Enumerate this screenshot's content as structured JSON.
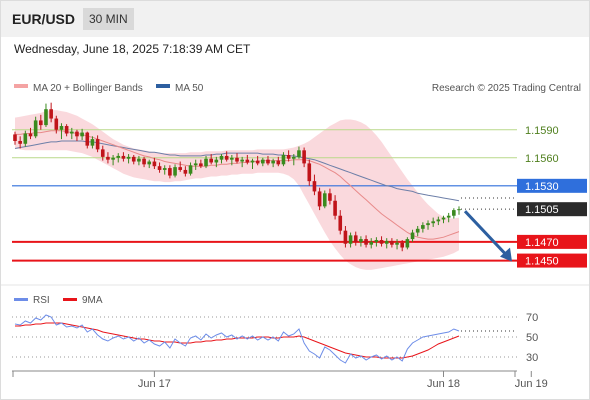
{
  "header": {
    "pair": "EUR/USD",
    "timeframe": "30 MIN",
    "datetime": "Wednesday, June 18, 2025 7:18:39 AM CET"
  },
  "legend": {
    "ma20": "MA 20 + Bollinger Bands",
    "ma50": "MA 50",
    "credit": "Research © 2025 Trading Central",
    "rsi": "RSI",
    "rsi_ma": "9MA"
  },
  "colors": {
    "up": "#3a8a1e",
    "down": "#c0141a",
    "bollinger_fill": "#f9d0d4",
    "ma20": "#e88a8a",
    "ma50": "#6d7fa8",
    "resistance": "#2f6fdc",
    "support": "#e8141a",
    "green_line": "#b9d98a",
    "arrow": "#2d5fa0",
    "rsi_line": "#6d8de8",
    "rsi_ma": "#e8141a"
  },
  "chart_data": [
    {
      "type": "candlestick",
      "title": "EUR/USD 30 MIN",
      "ylim": [
        1.1426,
        1.1624
      ],
      "x_ticks": [
        {
          "label": "Jun 17",
          "i": 27
        },
        {
          "label": "Jun 18",
          "i": 83
        },
        {
          "label": "Jun 19",
          "i": 100
        }
      ],
      "levels": [
        {
          "value": 1.159,
          "label": "1.1590",
          "kind": "green"
        },
        {
          "value": 1.156,
          "label": "1.1560",
          "kind": "green"
        },
        {
          "value": 1.153,
          "label": "1.1530",
          "kind": "resistance"
        },
        {
          "value": 1.1505,
          "label": "1.1505",
          "kind": "current"
        },
        {
          "value": 1.147,
          "label": "1.1470",
          "kind": "support"
        },
        {
          "value": 1.145,
          "label": "1.1450",
          "kind": "support"
        }
      ],
      "forecast_arrow": {
        "from": 1.1505,
        "to": 1.145
      },
      "ohlc": [
        [
          1.1585,
          1.1588,
          1.1574,
          1.1578
        ],
        [
          1.1578,
          1.1583,
          1.157,
          1.1575
        ],
        [
          1.1575,
          1.1589,
          1.1572,
          1.1586
        ],
        [
          1.1586,
          1.1592,
          1.158,
          1.1583
        ],
        [
          1.1583,
          1.1604,
          1.1581,
          1.16
        ],
        [
          1.16,
          1.1606,
          1.159,
          1.1595
        ],
        [
          1.1595,
          1.1618,
          1.1593,
          1.1612
        ],
        [
          1.1612,
          1.1619,
          1.1598,
          1.1602
        ],
        [
          1.1602,
          1.1605,
          1.1586,
          1.159
        ],
        [
          1.159,
          1.1597,
          1.158,
          1.1594
        ],
        [
          1.1594,
          1.1596,
          1.1583,
          1.1586
        ],
        [
          1.1586,
          1.1592,
          1.158,
          1.1588
        ],
        [
          1.1588,
          1.159,
          1.1578,
          1.1583
        ],
        [
          1.1583,
          1.1591,
          1.1579,
          1.1587
        ],
        [
          1.1587,
          1.1588,
          1.157,
          1.1573
        ],
        [
          1.1573,
          1.1583,
          1.157,
          1.158
        ],
        [
          1.158,
          1.1584,
          1.1566,
          1.1569
        ],
        [
          1.1569,
          1.1573,
          1.1557,
          1.1561
        ],
        [
          1.1561,
          1.1566,
          1.1554,
          1.1558
        ],
        [
          1.1558,
          1.1563,
          1.1552,
          1.156
        ],
        [
          1.156,
          1.1565,
          1.1555,
          1.1562
        ],
        [
          1.1562,
          1.1566,
          1.1556,
          1.1559
        ],
        [
          1.1559,
          1.1564,
          1.1554,
          1.1561
        ],
        [
          1.1561,
          1.1563,
          1.1553,
          1.1556
        ],
        [
          1.1556,
          1.1562,
          1.1552,
          1.1559
        ],
        [
          1.1559,
          1.1561,
          1.155,
          1.1553
        ],
        [
          1.1553,
          1.1558,
          1.1549,
          1.1556
        ],
        [
          1.1556,
          1.156,
          1.1548,
          1.1551
        ],
        [
          1.1551,
          1.1555,
          1.1544,
          1.1547
        ],
        [
          1.1547,
          1.1552,
          1.1542,
          1.1549
        ],
        [
          1.1549,
          1.1552,
          1.1538,
          1.1541
        ],
        [
          1.1541,
          1.1553,
          1.1539,
          1.155
        ],
        [
          1.155,
          1.1556,
          1.1545,
          1.1547
        ],
        [
          1.1547,
          1.1551,
          1.154,
          1.1543
        ],
        [
          1.1543,
          1.1555,
          1.1541,
          1.1552
        ],
        [
          1.1552,
          1.1558,
          1.1547,
          1.1554
        ],
        [
          1.1554,
          1.1558,
          1.1549,
          1.1551
        ],
        [
          1.1551,
          1.1562,
          1.1549,
          1.1559
        ],
        [
          1.1559,
          1.1564,
          1.1553,
          1.1555
        ],
        [
          1.1555,
          1.1561,
          1.155,
          1.1558
        ],
        [
          1.1558,
          1.1564,
          1.1554,
          1.1562
        ],
        [
          1.1562,
          1.1567,
          1.1556,
          1.1558
        ],
        [
          1.1558,
          1.1563,
          1.1552,
          1.156
        ],
        [
          1.156,
          1.1565,
          1.1554,
          1.1556
        ],
        [
          1.1556,
          1.1561,
          1.155,
          1.1558
        ],
        [
          1.1558,
          1.1563,
          1.1553,
          1.1555
        ],
        [
          1.1555,
          1.1559,
          1.1548,
          1.1557
        ],
        [
          1.1557,
          1.1562,
          1.1552,
          1.1554
        ],
        [
          1.1554,
          1.156,
          1.1551,
          1.1558
        ],
        [
          1.1558,
          1.1562,
          1.1552,
          1.1554
        ],
        [
          1.1554,
          1.1559,
          1.155,
          1.1557
        ],
        [
          1.1557,
          1.1561,
          1.1551,
          1.1553
        ],
        [
          1.1553,
          1.1566,
          1.1551,
          1.1563
        ],
        [
          1.1563,
          1.1568,
          1.1556,
          1.1559
        ],
        [
          1.1559,
          1.1564,
          1.1552,
          1.1561
        ],
        [
          1.1561,
          1.1572,
          1.1559,
          1.1568
        ],
        [
          1.1568,
          1.1571,
          1.155,
          1.1554
        ],
        [
          1.1554,
          1.1558,
          1.153,
          1.1535
        ],
        [
          1.1535,
          1.1542,
          1.152,
          1.1524
        ],
        [
          1.1524,
          1.1528,
          1.1504,
          1.1508
        ],
        [
          1.1508,
          1.1525,
          1.1506,
          1.1522
        ],
        [
          1.1522,
          1.1527,
          1.151,
          1.1514
        ],
        [
          1.1514,
          1.152,
          1.1494,
          1.1498
        ],
        [
          1.1498,
          1.1504,
          1.1478,
          1.1482
        ],
        [
          1.1482,
          1.1487,
          1.1464,
          1.1468
        ],
        [
          1.1468,
          1.148,
          1.1464,
          1.1477
        ],
        [
          1.1477,
          1.1481,
          1.1466,
          1.147
        ],
        [
          1.147,
          1.1476,
          1.1465,
          1.1473
        ],
        [
          1.1473,
          1.1477,
          1.1464,
          1.1467
        ],
        [
          1.1467,
          1.1474,
          1.1463,
          1.147
        ],
        [
          1.147,
          1.1475,
          1.1465,
          1.1472
        ],
        [
          1.1472,
          1.1476,
          1.1465,
          1.1468
        ],
        [
          1.1468,
          1.1474,
          1.1463,
          1.1471
        ],
        [
          1.1471,
          1.1474,
          1.1464,
          1.1467
        ],
        [
          1.1467,
          1.1473,
          1.1462,
          1.1469
        ],
        [
          1.1469,
          1.1472,
          1.146,
          1.1464
        ],
        [
          1.1464,
          1.1475,
          1.1462,
          1.1473
        ],
        [
          1.1473,
          1.1483,
          1.147,
          1.148
        ],
        [
          1.148,
          1.1487,
          1.1476,
          1.1484
        ],
        [
          1.1484,
          1.1491,
          1.148,
          1.1488
        ],
        [
          1.1488,
          1.1493,
          1.1483,
          1.149
        ],
        [
          1.149,
          1.1496,
          1.1486,
          1.1492
        ],
        [
          1.1492,
          1.1497,
          1.1488,
          1.1494
        ],
        [
          1.1494,
          1.1498,
          1.149,
          1.1496
        ],
        [
          1.1496,
          1.1501,
          1.1491,
          1.1498
        ],
        [
          1.1498,
          1.1506,
          1.1495,
          1.1504
        ],
        [
          1.1504,
          1.1508,
          1.1499,
          1.1505
        ]
      ],
      "ma20": [
        1.1585,
        1.1585,
        1.1586,
        1.1586,
        1.1587,
        1.1587,
        1.1588,
        1.1589,
        1.1589,
        1.1589,
        1.1588,
        1.1587,
        1.1586,
        1.1585,
        1.1583,
        1.1582,
        1.158,
        1.1578,
        1.1576,
        1.1574,
        1.1572,
        1.157,
        1.1568,
        1.1566,
        1.1564,
        1.1562,
        1.1561,
        1.1559,
        1.1558,
        1.1556,
        1.1555,
        1.1554,
        1.1553,
        1.1552,
        1.1551,
        1.1551,
        1.1551,
        1.1551,
        1.1552,
        1.1552,
        1.1553,
        1.1553,
        1.1554,
        1.1554,
        1.1555,
        1.1555,
        1.1556,
        1.1556,
        1.1557,
        1.1557,
        1.1557,
        1.1557,
        1.1557,
        1.1557,
        1.1558,
        1.1558,
        1.1558,
        1.1557,
        1.1555,
        1.1553,
        1.155,
        1.1547,
        1.1544,
        1.154,
        1.1535,
        1.153,
        1.1525,
        1.152,
        1.1515,
        1.151,
        1.1505,
        1.15,
        1.1496,
        1.1492,
        1.1488,
        1.1484,
        1.148,
        1.1477,
        1.1475,
        1.1474,
        1.1473,
        1.1473,
        1.1474,
        1.1475,
        1.1477,
        1.1479,
        1.1481
      ],
      "boll_upper": [
        1.1603,
        1.1604,
        1.1605,
        1.1606,
        1.1607,
        1.1608,
        1.161,
        1.1611,
        1.1611,
        1.161,
        1.1609,
        1.1607,
        1.1605,
        1.1602,
        1.1599,
        1.1596,
        1.1592,
        1.1588,
        1.1584,
        1.158,
        1.1577,
        1.1574,
        1.1572,
        1.157,
        1.1569,
        1.1568,
        1.1567,
        1.1566,
        1.1565,
        1.1565,
        1.1565,
        1.1565,
        1.1565,
        1.1565,
        1.1566,
        1.1566,
        1.1566,
        1.1567,
        1.1567,
        1.1567,
        1.1567,
        1.1568,
        1.1568,
        1.1568,
        1.1568,
        1.1568,
        1.1568,
        1.1569,
        1.1569,
        1.1569,
        1.1569,
        1.1569,
        1.1569,
        1.157,
        1.1571,
        1.1573,
        1.1575,
        1.1578,
        1.1582,
        1.1586,
        1.159,
        1.1594,
        1.1597,
        1.16,
        1.1601,
        1.1601,
        1.16,
        1.1598,
        1.1595,
        1.159,
        1.1584,
        1.1577,
        1.1569,
        1.1561,
        1.1553,
        1.1545,
        1.1537,
        1.153,
        1.1523,
        1.1516,
        1.151,
        1.1505,
        1.15,
        1.1497,
        1.1495,
        1.1495,
        1.1496
      ],
      "boll_lower": [
        1.157,
        1.1569,
        1.1568,
        1.1568,
        1.1568,
        1.1568,
        1.1568,
        1.1568,
        1.1568,
        1.1568,
        1.1568,
        1.1567,
        1.1566,
        1.1565,
        1.1563,
        1.1561,
        1.1558,
        1.1555,
        1.1552,
        1.1549,
        1.1546,
        1.1543,
        1.1541,
        1.1539,
        1.1538,
        1.1537,
        1.1536,
        1.1535,
        1.1535,
        1.1534,
        1.1534,
        1.1535,
        1.1535,
        1.1536,
        1.1537,
        1.1538,
        1.1538,
        1.1539,
        1.154,
        1.154,
        1.1541,
        1.1541,
        1.1542,
        1.1542,
        1.1543,
        1.1543,
        1.1543,
        1.1544,
        1.1544,
        1.1544,
        1.1544,
        1.1544,
        1.1543,
        1.1541,
        1.1537,
        1.153,
        1.152,
        1.151,
        1.15,
        1.149,
        1.148,
        1.1471,
        1.1463,
        1.1456,
        1.145,
        1.1446,
        1.1443,
        1.1441,
        1.144,
        1.144,
        1.1441,
        1.1442,
        1.1443,
        1.1444,
        1.1445,
        1.1446,
        1.1447,
        1.1448,
        1.1449,
        1.145,
        1.1451,
        1.1452,
        1.1453,
        1.1454,
        1.1456,
        1.1458,
        1.1461
      ],
      "ma50": [
        1.157,
        1.1571,
        1.1572,
        1.1573,
        1.1574,
        1.1575,
        1.1576,
        1.1577,
        1.1577,
        1.1578,
        1.1578,
        1.1578,
        1.1578,
        1.1578,
        1.1577,
        1.1577,
        1.1576,
        1.1575,
        1.1574,
        1.1573,
        1.1572,
        1.1571,
        1.157,
        1.1569,
        1.1568,
        1.1567,
        1.1566,
        1.1566,
        1.1565,
        1.1564,
        1.1563,
        1.1563,
        1.1562,
        1.1562,
        1.1562,
        1.1562,
        1.1562,
        1.1563,
        1.1563,
        1.1564,
        1.1564,
        1.1565,
        1.1565,
        1.1565,
        1.1565,
        1.1565,
        1.1565,
        1.1565,
        1.1564,
        1.1564,
        1.1564,
        1.1563,
        1.1563,
        1.1562,
        1.1562,
        1.1561,
        1.156,
        1.1559,
        1.1558,
        1.1556,
        1.1554,
        1.1552,
        1.155,
        1.1548,
        1.1546,
        1.1544,
        1.1542,
        1.154,
        1.1538,
        1.1536,
        1.1534,
        1.1532,
        1.153,
        1.1529,
        1.1527,
        1.1526,
        1.1525,
        1.1524,
        1.1522,
        1.1521,
        1.152,
        1.1519,
        1.1518,
        1.1517,
        1.1516,
        1.1515,
        1.1514
      ]
    },
    {
      "type": "line",
      "title": "RSI",
      "ylim": [
        20,
        80
      ],
      "y_ticks": [
        70,
        50,
        30
      ],
      "series": [
        {
          "name": "RSI",
          "values": [
            63,
            62,
            66,
            64,
            69,
            67,
            72,
            70,
            62,
            64,
            60,
            61,
            59,
            62,
            55,
            58,
            52,
            48,
            46,
            49,
            51,
            48,
            50,
            46,
            49,
            44,
            47,
            43,
            41,
            45,
            39,
            48,
            44,
            41,
            49,
            51,
            47,
            53,
            49,
            52,
            54,
            50,
            52,
            48,
            51,
            48,
            51,
            47,
            50,
            47,
            50,
            46,
            55,
            51,
            53,
            58,
            44,
            36,
            33,
            29,
            40,
            37,
            32,
            27,
            24,
            33,
            29,
            31,
            27,
            30,
            32,
            28,
            31,
            27,
            30,
            26,
            38,
            44,
            47,
            50,
            51,
            52,
            53,
            54,
            55,
            58,
            56
          ]
        },
        {
          "name": "9MA",
          "values": [
            61,
            61,
            62,
            62,
            63,
            63,
            64,
            64,
            64,
            64,
            63,
            62,
            61,
            60,
            59,
            58,
            57,
            55,
            54,
            53,
            52,
            51,
            50,
            49,
            48,
            48,
            47,
            46,
            46,
            45,
            45,
            45,
            44,
            44,
            44,
            45,
            45,
            46,
            46,
            47,
            47,
            48,
            48,
            49,
            49,
            49,
            49,
            50,
            50,
            50,
            49,
            49,
            50,
            50,
            50,
            51,
            50,
            48,
            46,
            44,
            42,
            40,
            38,
            36,
            34,
            33,
            32,
            31,
            30,
            30,
            30,
            29,
            29,
            29,
            29,
            29,
            30,
            31,
            33,
            35,
            37,
            40,
            43,
            45,
            47,
            49,
            51
          ]
        }
      ]
    }
  ]
}
